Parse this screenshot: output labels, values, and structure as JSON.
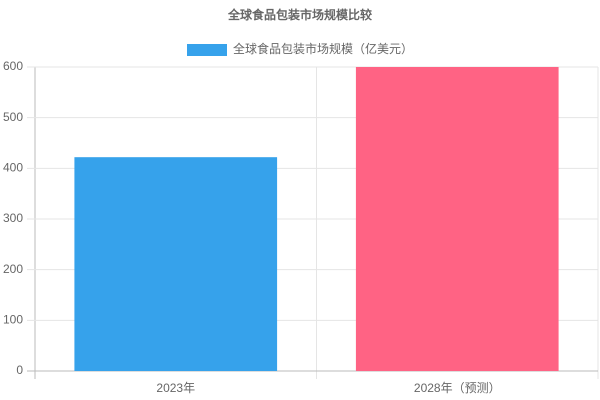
{
  "chart_data": {
    "type": "bar",
    "title": "全球食品包装市场规模比较",
    "categories": [
      "2023年",
      "2028年（预测）"
    ],
    "series": [
      {
        "name": "全球食品包装市场规模（亿美元）",
        "colors": [
          "#36a2eb",
          "#ff6384"
        ],
        "values": [
          422,
          600
        ]
      }
    ],
    "ylim": [
      0,
      600
    ],
    "yticks": [
      0,
      100,
      200,
      300,
      400,
      500,
      600
    ],
    "grid": true,
    "legend": "top"
  }
}
